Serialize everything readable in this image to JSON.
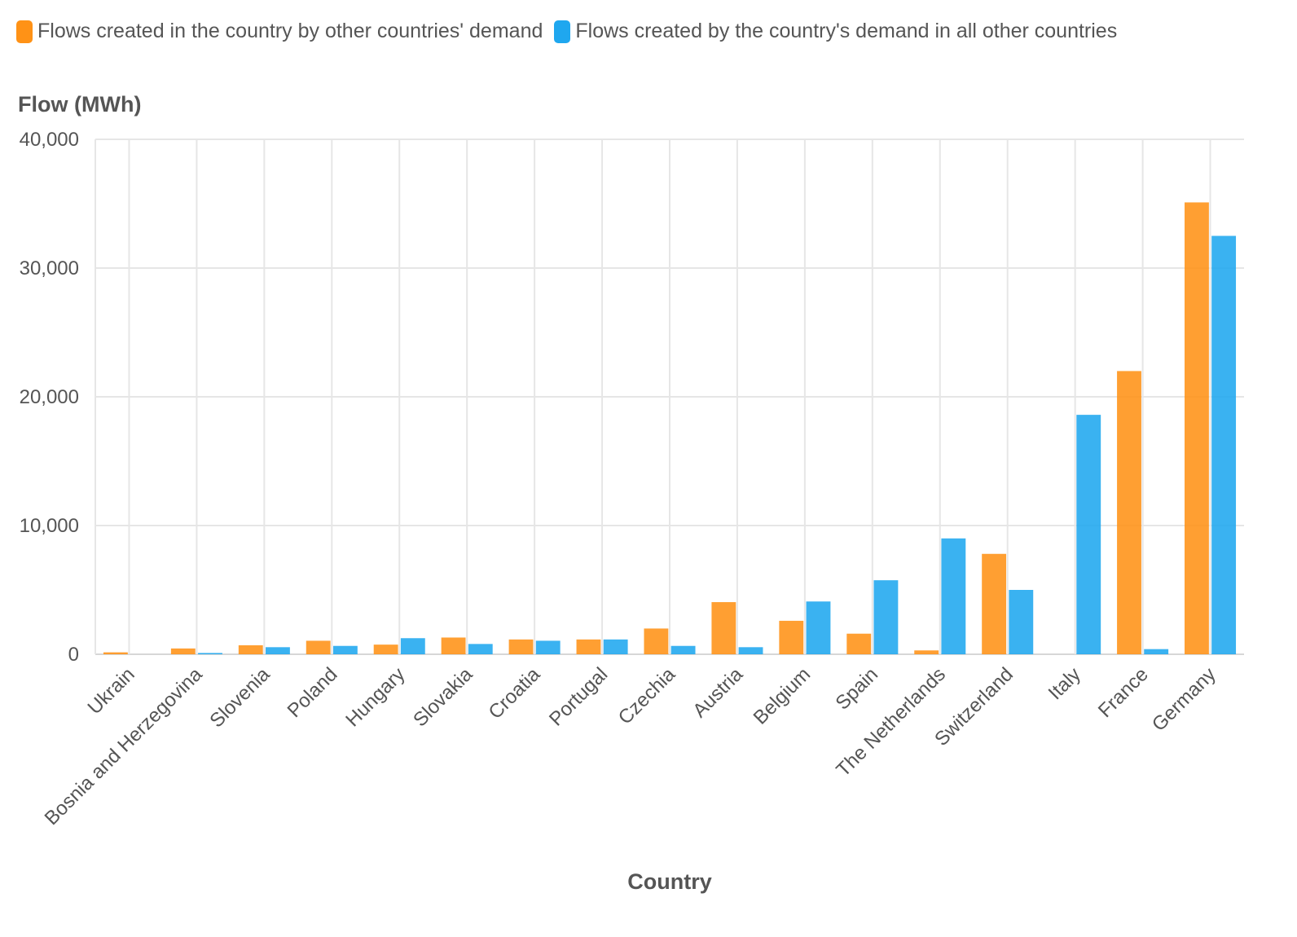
{
  "legend": [
    {
      "label": "Flows created in the country by other countries' demand",
      "color": "#ff9216"
    },
    {
      "label": "Flows created by the country's demand in all other countries",
      "color": "#1fa7ef"
    }
  ],
  "chart_data": {
    "type": "bar",
    "ylabel": "Flow (MWh)",
    "xlabel": "Country",
    "ylim": [
      0,
      40000
    ],
    "yticks": [
      0,
      10000,
      20000,
      30000,
      40000
    ],
    "ytick_labels": [
      "0",
      "10,000",
      "20,000",
      "30,000",
      "40,000"
    ],
    "grid": true,
    "legend_position": "top-left",
    "categories": [
      "Ukrain",
      "Bosnia and Herzegovina",
      "Slovenia",
      "Poland",
      "Hungary",
      "Slovakia",
      "Croatia",
      "Portugal",
      "Czechia",
      "Austria",
      "Belgium",
      "Spain",
      "The Netherlands",
      "Switzerland",
      "Italy",
      "France",
      "Germany"
    ],
    "series": [
      {
        "name": "Flows created in the country by other countries' demand",
        "color": "#ff9216",
        "values": [
          150,
          450,
          700,
          1050,
          750,
          1300,
          1150,
          1150,
          2000,
          4050,
          2600,
          1600,
          300,
          7800,
          0,
          22000,
          35100
        ]
      },
      {
        "name": "Flows created by the country's demand in all other countries",
        "color": "#1fa7ef",
        "values": [
          0,
          100,
          550,
          650,
          1250,
          800,
          1050,
          1150,
          650,
          550,
          4100,
          5750,
          9000,
          5000,
          18600,
          400,
          32500
        ]
      }
    ]
  }
}
